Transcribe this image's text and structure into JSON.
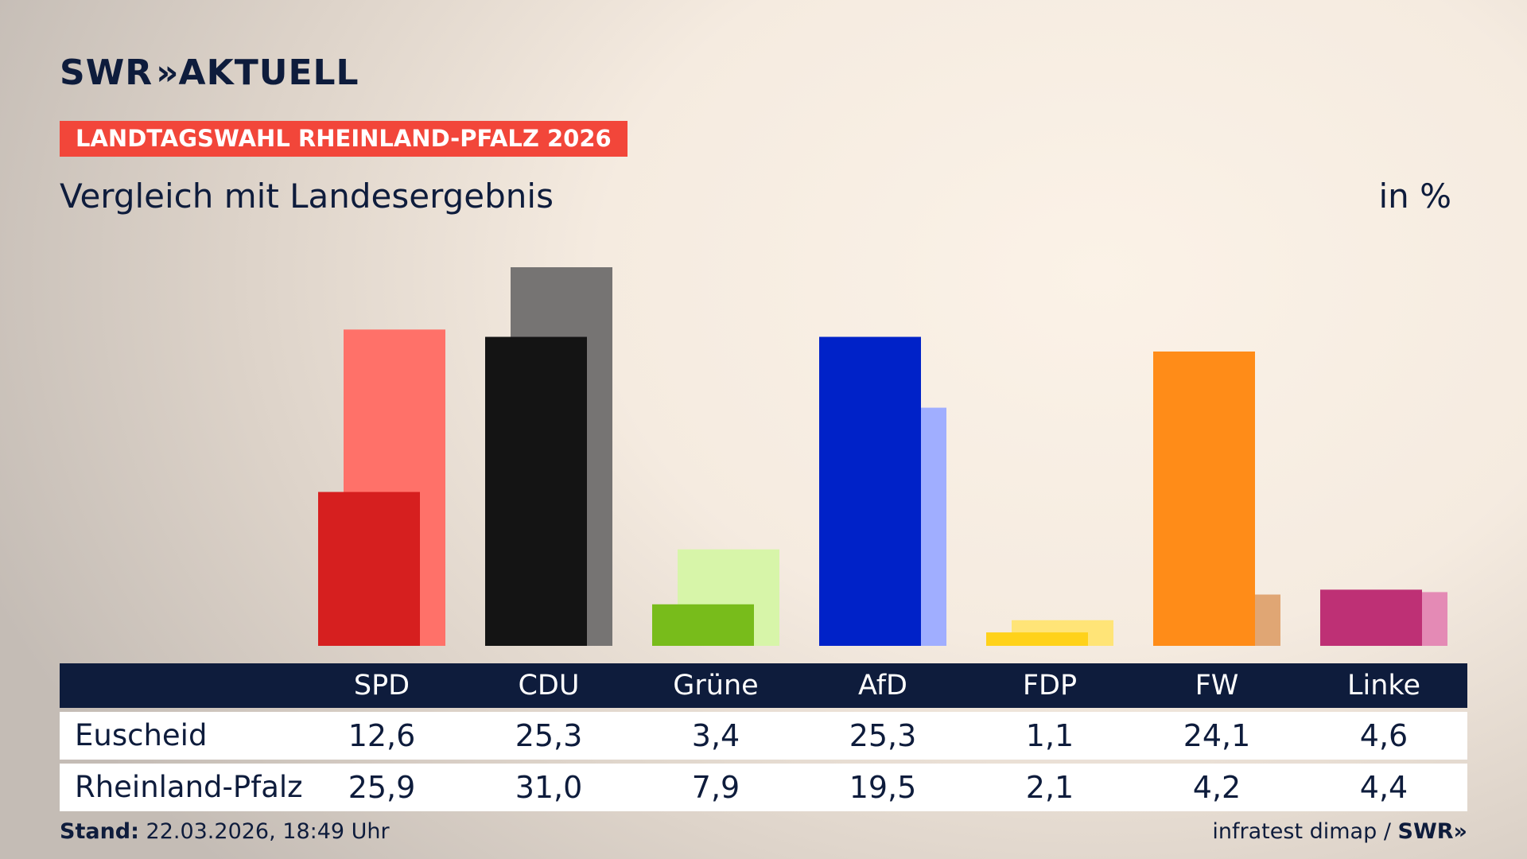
{
  "brand": {
    "name_left": "SWR",
    "chevrons": "»",
    "name_right": "AKTUELL"
  },
  "badge": "LANDTAGSWAHL RHEINLAND-PFALZ 2026",
  "subtitle": "Vergleich mit Landesergebnis",
  "unit": "in %",
  "colors": {
    "brand_navy": "#0e1c3c",
    "badge_red": "#f2463a"
  },
  "chart_data": {
    "type": "bar",
    "title": "Vergleich mit Landesergebnis",
    "ylabel": "in %",
    "ylim": [
      0,
      31
    ],
    "grid": false,
    "categories": [
      "SPD",
      "CDU",
      "Grüne",
      "AfD",
      "FDP",
      "FW",
      "Linke"
    ],
    "series": [
      {
        "name": "Euscheid",
        "values": [
          12.6,
          25.3,
          3.4,
          25.3,
          1.1,
          24.1,
          4.6
        ],
        "colors": [
          "#d61f1f",
          "#141414",
          "#78bc1b",
          "#0022c8",
          "#ffd21a",
          "#ff8c18",
          "#be3075"
        ]
      },
      {
        "name": "Rheinland-Pfalz",
        "values": [
          25.9,
          31.0,
          7.9,
          19.5,
          2.1,
          4.2,
          4.4
        ],
        "colors": [
          "#ff7169",
          "#767473",
          "#d7f5a9",
          "#a0aeff",
          "#ffe477",
          "#e0a674",
          "#e48ab5"
        ]
      }
    ]
  },
  "table": {
    "headers": [
      "SPD",
      "CDU",
      "Grüne",
      "AfD",
      "FDP",
      "FW",
      "Linke"
    ],
    "rows": [
      {
        "label": "Euscheid",
        "values": [
          "12,6",
          "25,3",
          "3,4",
          "25,3",
          "1,1",
          "24,1",
          "4,6"
        ]
      },
      {
        "label": "Rheinland-Pfalz",
        "values": [
          "25,9",
          "31,0",
          "7,9",
          "19,5",
          "2,1",
          "4,2",
          "4,4"
        ]
      }
    ]
  },
  "footer": {
    "stand_label": "Stand:",
    "stand_value": "22.03.2026, 18:49 Uhr",
    "source": "infratest dimap /",
    "source_brand": "SWR»"
  }
}
